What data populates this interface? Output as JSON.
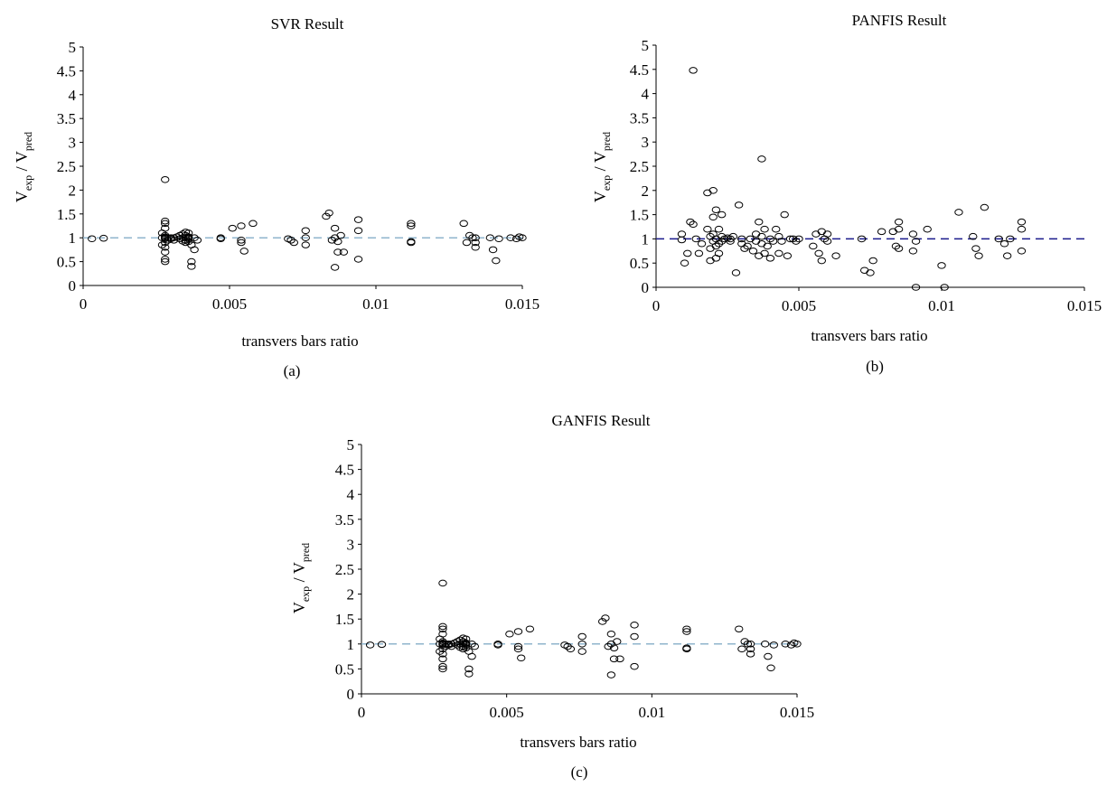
{
  "figure": {
    "panels": [
      {
        "id": "a",
        "caption": "(a)"
      },
      {
        "id": "b",
        "caption": "(b)"
      },
      {
        "id": "c",
        "caption": "(c)"
      }
    ]
  },
  "colors": {
    "markers": "#000000",
    "reference_line_a": "#8fb4cc",
    "reference_line_b": "#1a1a8c",
    "reference_line_c": "#8fb4cc",
    "axis": "#000000"
  },
  "chart_data": [
    {
      "type": "scatter",
      "title": "SVR Result",
      "xlabel": "transvers bars ratio",
      "ylabel": {
        "main_1": "V",
        "sub_1": "exp",
        "sep": " / ",
        "main_2": "V",
        "sub_2": "pred"
      },
      "xlim": [
        0,
        0.015
      ],
      "ylim": [
        0,
        5
      ],
      "xticks": [
        "0",
        "0.005",
        "0.01",
        "0.015"
      ],
      "yticks": [
        "0",
        "0.5",
        "1",
        "1.5",
        "2",
        "2.5",
        "3",
        "3.5",
        "4",
        "4.5",
        "5"
      ],
      "grid": false,
      "reference_line": {
        "y": 1,
        "style": "dashed"
      },
      "x": [
        0.0003,
        0.0007,
        0.0027,
        0.0027,
        0.0027,
        0.0028,
        0.0028,
        0.0028,
        0.0028,
        0.0028,
        0.0028,
        0.0028,
        0.0028,
        0.0028,
        0.0028,
        0.0028,
        0.0028,
        0.0028,
        0.0029,
        0.0029,
        0.003,
        0.003,
        0.0031,
        0.0031,
        0.0032,
        0.0033,
        0.0033,
        0.0034,
        0.0034,
        0.0034,
        0.0035,
        0.0035,
        0.0035,
        0.0035,
        0.0035,
        0.0036,
        0.0036,
        0.0036,
        0.0036,
        0.0036,
        0.0037,
        0.0037,
        0.0037,
        0.0038,
        0.0038,
        0.0039,
        0.0047,
        0.0047,
        0.0051,
        0.0054,
        0.0054,
        0.0054,
        0.0055,
        0.0058,
        0.007,
        0.0071,
        0.0072,
        0.0076,
        0.0076,
        0.0076,
        0.0083,
        0.0084,
        0.0085,
        0.0086,
        0.0086,
        0.0086,
        0.0087,
        0.0087,
        0.0088,
        0.0089,
        0.0094,
        0.0094,
        0.0094,
        0.0112,
        0.0112,
        0.0112,
        0.0112,
        0.013,
        0.0131,
        0.0132,
        0.0133,
        0.0134,
        0.0134,
        0.0134,
        0.0139,
        0.014,
        0.0141,
        0.0142,
        0.0146,
        0.0148,
        0.0149,
        0.015
      ],
      "y": [
        0.98,
        0.99,
        1.1,
        0.85,
        1.0,
        2.22,
        1.35,
        1.3,
        1.2,
        1.05,
        1.0,
        0.9,
        0.8,
        0.7,
        0.55,
        0.5,
        0.98,
        1.02,
        1.0,
        0.95,
        1.0,
        0.98,
        0.95,
        1.0,
        1.02,
        0.98,
        1.05,
        1.0,
        0.93,
        1.08,
        1.12,
        1.0,
        0.95,
        0.9,
        1.05,
        1.0,
        0.98,
        0.92,
        1.1,
        1.02,
        0.85,
        0.5,
        0.4,
        0.75,
        1.0,
        0.95,
        0.98,
        1.0,
        1.2,
        1.25,
        0.95,
        0.9,
        0.72,
        1.3,
        0.98,
        0.95,
        0.9,
        1.15,
        1.0,
        0.85,
        1.45,
        1.52,
        0.95,
        1.2,
        1.0,
        0.38,
        0.7,
        0.92,
        1.05,
        0.7,
        1.38,
        1.15,
        0.55,
        1.3,
        1.25,
        0.9,
        0.92,
        1.3,
        0.9,
        1.05,
        1.0,
        0.9,
        0.8,
        1.0,
        1.0,
        0.75,
        0.52,
        0.98,
        1.0,
        0.98,
        1.02,
        1.0
      ]
    },
    {
      "type": "scatter",
      "title": "PANFIS Result",
      "xlabel": "transvers bars ratio",
      "ylabel": {
        "main_1": "V",
        "sub_1": "exp",
        "sep": " / ",
        "main_2": "V",
        "sub_2": "pred"
      },
      "xlim": [
        0,
        0.015
      ],
      "ylim": [
        0,
        5
      ],
      "xticks": [
        "0",
        "0.005",
        "0.01",
        "0.015"
      ],
      "yticks": [
        "0",
        "0.5",
        "1",
        "1.5",
        "2",
        "2.5",
        "3",
        "3.5",
        "4",
        "4.5",
        "5"
      ],
      "grid": false,
      "reference_line": {
        "y": 1,
        "style": "dashed"
      },
      "x": [
        0.0009,
        0.0009,
        0.001,
        0.0011,
        0.0012,
        0.0013,
        0.0013,
        0.0014,
        0.0015,
        0.0016,
        0.0018,
        0.0018,
        0.0019,
        0.0019,
        0.0019,
        0.002,
        0.002,
        0.002,
        0.002,
        0.0021,
        0.0021,
        0.0021,
        0.0021,
        0.0022,
        0.0022,
        0.0022,
        0.0023,
        0.0023,
        0.0023,
        0.0024,
        0.0025,
        0.0026,
        0.0026,
        0.0027,
        0.0028,
        0.0029,
        0.003,
        0.003,
        0.0031,
        0.0032,
        0.0033,
        0.0034,
        0.0035,
        0.0035,
        0.0036,
        0.0036,
        0.0037,
        0.0037,
        0.0037,
        0.0038,
        0.0038,
        0.0039,
        0.004,
        0.004,
        0.0041,
        0.0042,
        0.0043,
        0.0043,
        0.0044,
        0.0045,
        0.0046,
        0.0047,
        0.0048,
        0.0049,
        0.005,
        0.0055,
        0.0056,
        0.0057,
        0.0058,
        0.0058,
        0.0059,
        0.006,
        0.006,
        0.0063,
        0.0072,
        0.0073,
        0.0075,
        0.0076,
        0.0079,
        0.0083,
        0.0084,
        0.0085,
        0.0085,
        0.0085,
        0.009,
        0.009,
        0.0091,
        0.0091,
        0.0095,
        0.01,
        0.0101,
        0.0106,
        0.0111,
        0.0112,
        0.0113,
        0.0115,
        0.012,
        0.0122,
        0.0123,
        0.0124,
        0.0128,
        0.0128,
        0.0128
      ],
      "y": [
        1.1,
        0.98,
        0.5,
        0.7,
        1.35,
        4.48,
        1.3,
        1.0,
        0.7,
        0.9,
        1.95,
        1.2,
        0.8,
        1.05,
        0.55,
        2.0,
        1.45,
        1.1,
        0.95,
        1.6,
        0.6,
        0.85,
        1.0,
        1.2,
        0.9,
        0.7,
        1.5,
        1.05,
        0.95,
        1.0,
        1.02,
        1.0,
        0.95,
        1.05,
        0.3,
        1.7,
        0.9,
        1.0,
        0.8,
        0.85,
        1.0,
        0.75,
        1.1,
        0.95,
        1.35,
        0.65,
        2.65,
        1.05,
        0.9,
        1.2,
        0.7,
        0.85,
        0.6,
        1.0,
        0.95,
        1.2,
        0.7,
        1.05,
        0.95,
        1.5,
        0.65,
        1.0,
        1.0,
        0.95,
        1.0,
        0.85,
        1.1,
        0.7,
        1.15,
        0.55,
        1.0,
        1.1,
        0.95,
        0.65,
        1.0,
        0.35,
        0.3,
        0.55,
        1.15,
        1.15,
        0.85,
        1.35,
        1.2,
        0.8,
        1.1,
        0.75,
        0.95,
        0.0,
        1.2,
        0.45,
        0.0,
        1.55,
        1.05,
        0.8,
        0.65,
        1.65,
        1.0,
        0.9,
        0.65,
        1.0,
        1.35,
        1.2,
        0.75
      ]
    },
    {
      "type": "scatter",
      "title": "GANFIS Result",
      "xlabel": "transvers bars ratio",
      "ylabel": {
        "main_1": "V",
        "sub_1": "exp",
        "sep": " / ",
        "main_2": "V",
        "sub_2": "pred"
      },
      "xlim": [
        0,
        0.015
      ],
      "ylim": [
        0,
        5
      ],
      "xticks": [
        "0",
        "0.005",
        "0.01",
        "0.015"
      ],
      "yticks": [
        "0",
        "0.5",
        "1",
        "1.5",
        "2",
        "2.5",
        "3",
        "3.5",
        "4",
        "4.5",
        "5"
      ],
      "grid": false,
      "reference_line": {
        "y": 1,
        "style": "dashed"
      },
      "x": [
        0.0003,
        0.0007,
        0.0027,
        0.0027,
        0.0027,
        0.0028,
        0.0028,
        0.0028,
        0.0028,
        0.0028,
        0.0028,
        0.0028,
        0.0028,
        0.0028,
        0.0028,
        0.0028,
        0.0028,
        0.0028,
        0.0029,
        0.0029,
        0.003,
        0.003,
        0.0031,
        0.0031,
        0.0032,
        0.0033,
        0.0033,
        0.0034,
        0.0034,
        0.0034,
        0.0035,
        0.0035,
        0.0035,
        0.0035,
        0.0035,
        0.0036,
        0.0036,
        0.0036,
        0.0036,
        0.0036,
        0.0037,
        0.0037,
        0.0037,
        0.0038,
        0.0038,
        0.0039,
        0.0047,
        0.0047,
        0.0051,
        0.0054,
        0.0054,
        0.0054,
        0.0055,
        0.0058,
        0.007,
        0.0071,
        0.0072,
        0.0076,
        0.0076,
        0.0076,
        0.0083,
        0.0084,
        0.0085,
        0.0086,
        0.0086,
        0.0086,
        0.0087,
        0.0087,
        0.0088,
        0.0089,
        0.0094,
        0.0094,
        0.0094,
        0.0112,
        0.0112,
        0.0112,
        0.0112,
        0.013,
        0.0131,
        0.0132,
        0.0133,
        0.0134,
        0.0134,
        0.0134,
        0.0139,
        0.014,
        0.0141,
        0.0142,
        0.0146,
        0.0148,
        0.0149,
        0.015
      ],
      "y": [
        0.98,
        0.99,
        1.1,
        0.85,
        1.0,
        2.22,
        1.35,
        1.3,
        1.2,
        1.05,
        1.0,
        0.9,
        0.8,
        0.7,
        0.55,
        0.5,
        0.98,
        1.02,
        1.0,
        0.95,
        1.0,
        0.98,
        0.95,
        1.0,
        1.02,
        0.98,
        1.05,
        1.0,
        0.93,
        1.08,
        1.12,
        1.0,
        0.95,
        0.9,
        1.05,
        1.0,
        0.98,
        0.92,
        1.1,
        1.02,
        0.85,
        0.5,
        0.4,
        0.75,
        1.0,
        0.95,
        0.98,
        1.0,
        1.2,
        1.25,
        0.95,
        0.9,
        0.72,
        1.3,
        0.98,
        0.95,
        0.9,
        1.15,
        1.0,
        0.85,
        1.45,
        1.52,
        0.95,
        1.2,
        1.0,
        0.38,
        0.7,
        0.92,
        1.05,
        0.7,
        1.38,
        1.15,
        0.55,
        1.3,
        1.25,
        0.9,
        0.92,
        1.3,
        0.9,
        1.05,
        1.0,
        0.9,
        0.8,
        1.0,
        1.0,
        0.75,
        0.52,
        0.98,
        1.0,
        0.98,
        1.02,
        1.0
      ]
    }
  ]
}
